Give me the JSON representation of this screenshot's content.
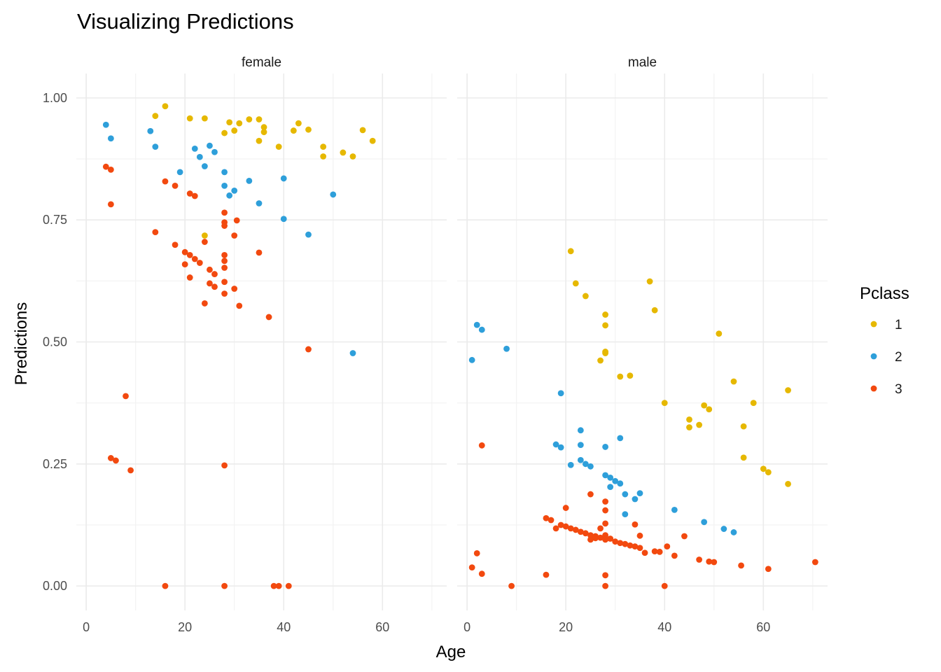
{
  "chart_data": {
    "type": "scatter",
    "title": "Visualizing Predictions",
    "xlabel": "Age",
    "ylabel": "Predictions",
    "xlim": [
      -2,
      73
    ],
    "ylim": [
      -0.05,
      1.05
    ],
    "x_ticks": [
      0,
      20,
      40,
      60
    ],
    "y_ticks": [
      0.0,
      0.25,
      0.5,
      0.75,
      1.0
    ],
    "x_tick_labels": [
      "0",
      "20",
      "40",
      "60"
    ],
    "y_tick_labels": [
      "0.00",
      "0.25",
      "0.50",
      "0.75",
      "1.00"
    ],
    "grid": true,
    "legend": {
      "title": "Pclass",
      "placement": "right",
      "entries": [
        {
          "label": "1",
          "color": "#E6B800"
        },
        {
          "label": "2",
          "color": "#2E9FDA"
        },
        {
          "label": "3",
          "color": "#F2490F"
        }
      ]
    },
    "panels": [
      {
        "label": "female",
        "series": [
          {
            "name": "1",
            "points": [
              [
                14,
                0.963
              ],
              [
                16,
                0.983
              ],
              [
                21,
                0.958
              ],
              [
                24,
                0.958
              ],
              [
                24,
                0.718
              ],
              [
                28,
                0.928
              ],
              [
                29,
                0.95
              ],
              [
                30,
                0.933
              ],
              [
                31,
                0.948
              ],
              [
                33,
                0.956
              ],
              [
                35,
                0.956
              ],
              [
                35,
                0.912
              ],
              [
                36,
                0.94
              ],
              [
                36,
                0.93
              ],
              [
                39,
                0.9
              ],
              [
                42,
                0.933
              ],
              [
                43,
                0.948
              ],
              [
                45,
                0.935
              ],
              [
                48,
                0.9
              ],
              [
                48,
                0.88
              ],
              [
                52,
                0.888
              ],
              [
                54,
                0.88
              ],
              [
                56,
                0.934
              ],
              [
                58,
                0.912
              ]
            ]
          },
          {
            "name": "2",
            "points": [
              [
                4,
                0.945
              ],
              [
                5,
                0.917
              ],
              [
                13,
                0.932
              ],
              [
                14,
                0.9
              ],
              [
                19,
                0.848
              ],
              [
                22,
                0.896
              ],
              [
                23,
                0.879
              ],
              [
                24,
                0.86
              ],
              [
                25,
                0.902
              ],
              [
                26,
                0.889
              ],
              [
                28,
                0.848
              ],
              [
                28,
                0.82
              ],
              [
                29,
                0.8
              ],
              [
                30,
                0.81
              ],
              [
                33,
                0.83
              ],
              [
                35,
                0.784
              ],
              [
                40,
                0.835
              ],
              [
                40,
                0.752
              ],
              [
                45,
                0.72
              ],
              [
                50,
                0.802
              ],
              [
                54,
                0.477
              ]
            ]
          },
          {
            "name": "3",
            "points": [
              [
                4,
                0.859
              ],
              [
                5,
                0.853
              ],
              [
                5,
                0.782
              ],
              [
                6,
                0.257
              ],
              [
                5,
                0.262
              ],
              [
                8,
                0.389
              ],
              [
                9,
                0.237
              ],
              [
                14,
                0.725
              ],
              [
                16,
                0.829
              ],
              [
                18,
                0.82
              ],
              [
                16,
                0.0
              ],
              [
                18,
                0.699
              ],
              [
                20,
                0.684
              ],
              [
                20,
                0.659
              ],
              [
                21,
                0.804
              ],
              [
                21,
                0.678
              ],
              [
                21,
                0.632
              ],
              [
                22,
                0.799
              ],
              [
                22,
                0.67
              ],
              [
                23,
                0.662
              ],
              [
                24,
                0.705
              ],
              [
                24,
                0.579
              ],
              [
                25,
                0.648
              ],
              [
                25,
                0.62
              ],
              [
                26,
                0.639
              ],
              [
                26,
                0.613
              ],
              [
                28,
                0.765
              ],
              [
                28,
                0.745
              ],
              [
                28,
                0.738
              ],
              [
                28,
                0.678
              ],
              [
                28,
                0.666
              ],
              [
                28,
                0.652
              ],
              [
                28,
                0.623
              ],
              [
                28,
                0.599
              ],
              [
                28,
                0.247
              ],
              [
                28,
                0.0
              ],
              [
                30,
                0.718
              ],
              [
                30,
                0.609
              ],
              [
                30.5,
                0.749
              ],
              [
                31,
                0.574
              ],
              [
                35,
                0.683
              ],
              [
                37,
                0.551
              ],
              [
                38,
                0.0
              ],
              [
                39,
                0.0
              ],
              [
                41,
                0.0
              ],
              [
                45,
                0.485
              ]
            ]
          }
        ]
      },
      {
        "label": "male",
        "series": [
          {
            "name": "1",
            "points": [
              [
                21,
                0.686
              ],
              [
                22,
                0.62
              ],
              [
                24,
                0.594
              ],
              [
                27,
                0.462
              ],
              [
                28,
                0.556
              ],
              [
                28,
                0.534
              ],
              [
                28,
                0.48
              ],
              [
                28,
                0.477
              ],
              [
                31,
                0.429
              ],
              [
                33,
                0.431
              ],
              [
                37,
                0.624
              ],
              [
                38,
                0.565
              ],
              [
                40,
                0.375
              ],
              [
                45,
                0.341
              ],
              [
                45,
                0.325
              ],
              [
                47,
                0.33
              ],
              [
                48,
                0.37
              ],
              [
                49,
                0.362
              ],
              [
                51,
                0.517
              ],
              [
                54,
                0.419
              ],
              [
                56,
                0.327
              ],
              [
                56,
                0.263
              ],
              [
                58,
                0.375
              ],
              [
                60,
                0.24
              ],
              [
                61,
                0.233
              ],
              [
                65,
                0.401
              ],
              [
                65,
                0.209
              ]
            ]
          },
          {
            "name": "2",
            "points": [
              [
                1,
                0.463
              ],
              [
                2,
                0.535
              ],
              [
                3,
                0.525
              ],
              [
                8,
                0.486
              ],
              [
                18,
                0.29
              ],
              [
                19,
                0.284
              ],
              [
                19,
                0.395
              ],
              [
                21,
                0.248
              ],
              [
                23,
                0.319
              ],
              [
                23,
                0.289
              ],
              [
                23,
                0.258
              ],
              [
                24,
                0.25
              ],
              [
                25,
                0.245
              ],
              [
                28,
                0.285
              ],
              [
                28,
                0.227
              ],
              [
                29,
                0.222
              ],
              [
                29,
                0.203
              ],
              [
                30,
                0.215
              ],
              [
                31,
                0.21
              ],
              [
                31,
                0.303
              ],
              [
                32,
                0.188
              ],
              [
                32,
                0.147
              ],
              [
                34,
                0.178
              ],
              [
                35,
                0.19
              ],
              [
                42,
                0.156
              ],
              [
                48,
                0.131
              ],
              [
                52,
                0.117
              ],
              [
                54,
                0.11
              ]
            ]
          },
          {
            "name": "3",
            "points": [
              [
                1,
                0.038
              ],
              [
                2,
                0.067
              ],
              [
                3,
                0.288
              ],
              [
                3,
                0.025
              ],
              [
                9,
                0.0
              ],
              [
                16,
                0.139
              ],
              [
                16,
                0.023
              ],
              [
                17,
                0.135
              ],
              [
                18,
                0.118
              ],
              [
                19,
                0.125
              ],
              [
                20,
                0.16
              ],
              [
                20,
                0.122
              ],
              [
                21,
                0.118
              ],
              [
                22,
                0.115
              ],
              [
                23,
                0.111
              ],
              [
                24,
                0.108
              ],
              [
                25,
                0.188
              ],
              [
                25,
                0.095
              ],
              [
                25,
                0.104
              ],
              [
                26,
                0.102
              ],
              [
                26,
                0.098
              ],
              [
                27,
                0.118
              ],
              [
                27,
                0.099
              ],
              [
                28,
                0.173
              ],
              [
                28,
                0.155
              ],
              [
                28,
                0.128
              ],
              [
                28,
                0.104
              ],
              [
                28,
                0.095
              ],
              [
                28,
                0.022
              ],
              [
                28,
                0.0
              ],
              [
                29,
                0.097
              ],
              [
                30,
                0.091
              ],
              [
                31,
                0.088
              ],
              [
                32,
                0.086
              ],
              [
                33,
                0.083
              ],
              [
                34,
                0.126
              ],
              [
                34,
                0.081
              ],
              [
                35,
                0.103
              ],
              [
                35,
                0.078
              ],
              [
                36,
                0.068
              ],
              [
                38,
                0.071
              ],
              [
                39,
                0.07
              ],
              [
                40,
                0.0
              ],
              [
                40.5,
                0.081
              ],
              [
                42,
                0.062
              ],
              [
                44,
                0.102
              ],
              [
                47,
                0.054
              ],
              [
                49,
                0.05
              ],
              [
                50,
                0.049
              ],
              [
                55.5,
                0.042
              ],
              [
                61,
                0.035
              ],
              [
                70.5,
                0.049
              ]
            ]
          }
        ]
      }
    ]
  }
}
